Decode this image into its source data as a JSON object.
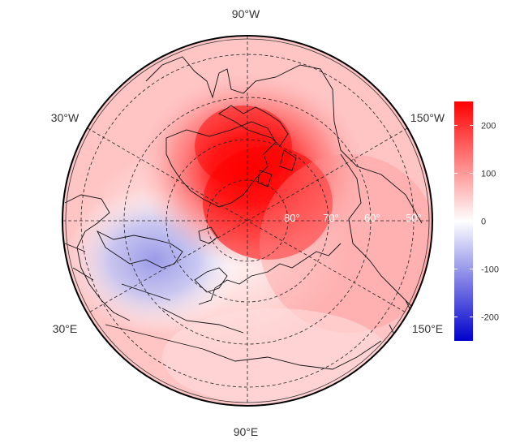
{
  "map": {
    "projection": "polar-stereographic",
    "pole": "north",
    "graticule_style": "dashed",
    "longitude_labels": [
      "90°W",
      "30°W",
      "150°W",
      "30°E",
      "150°E",
      "90°E"
    ],
    "latitude_labels": [
      "80°",
      "70°",
      "60°",
      "50°"
    ],
    "field": {
      "description_values": "anomaly field",
      "max_region": "Greenland / Canadian Arctic",
      "min_region": "Scandinavia / western Russia"
    }
  },
  "colorbar": {
    "range": [
      -250,
      250
    ],
    "ticks": [
      "200",
      "100",
      "0",
      "-100",
      "-200"
    ],
    "tick_values": [
      200,
      100,
      0,
      -100,
      -200
    ],
    "colors": {
      "low": "#0000cc",
      "mid": "#ffffff",
      "high": "#ff0000"
    }
  }
}
